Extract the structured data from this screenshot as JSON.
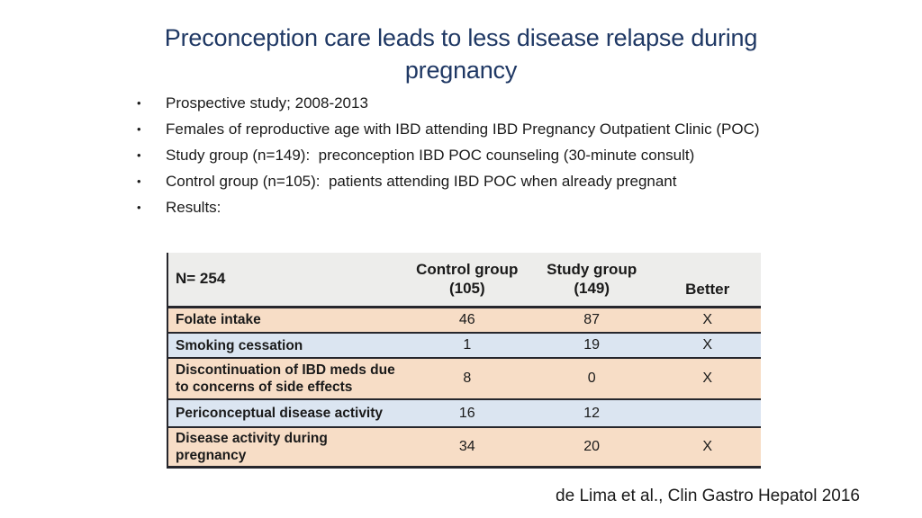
{
  "slide": {
    "title": {
      "line1": "Preconception care leads to less disease relapse during",
      "line2": "pregnancy"
    },
    "bullets": [
      "Prospective study; 2008-2013",
      "Females of reproductive age with IBD attending IBD Pregnancy Outpatient Clinic (POC)",
      "Study group (n=149):  preconception IBD POC counseling (30-minute consult)",
      "Control group (n=105):  patients attending IBD POC when already pregnant",
      "Results:"
    ],
    "citation": "de Lima et al., Clin Gastro Hepatol 2016",
    "colors": {
      "title_navy": "#1F3864",
      "table_header_bg": "#EDEDEB",
      "row_peach": "#F7DDC6",
      "row_blue": "#DBE5F1",
      "table_border": "#26262C"
    }
  },
  "table": {
    "header": {
      "col1": "N= 254",
      "col2_line1": "Control group",
      "col2_line2": "(105)",
      "col3_line1": "Study group",
      "col3_line2": "(149)",
      "col4": "Better"
    },
    "rows": [
      {
        "label": "Folate intake",
        "control": "46",
        "study": "87",
        "better": "X",
        "band": "peach"
      },
      {
        "label": "Smoking cessation",
        "control": "1",
        "study": "19",
        "better": "X",
        "band": "blue"
      },
      {
        "label": "Discontinuation of IBD meds due to concerns of side effects",
        "control": "8",
        "study": "0",
        "better": "X",
        "band": "peach"
      },
      {
        "label": "Periconceptual disease activity",
        "control": "16",
        "study": "12",
        "better": "",
        "band": "blue"
      },
      {
        "label": "Disease activity during pregnancy",
        "control": "34",
        "study": "20",
        "better": "X",
        "band": "peach"
      }
    ]
  }
}
